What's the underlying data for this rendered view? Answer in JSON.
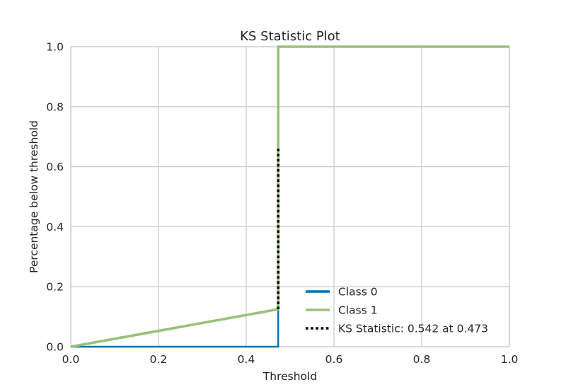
{
  "chart_data": {
    "type": "line",
    "title": "KS Statistic Plot",
    "xlabel": "Threshold",
    "ylabel": "Percentage below threshold",
    "xlim": [
      0.0,
      1.0
    ],
    "ylim": [
      0.0,
      1.0
    ],
    "xticks": [
      "0.0",
      "0.2",
      "0.4",
      "0.6",
      "0.8",
      "1.0"
    ],
    "yticks": [
      "0.0",
      "0.2",
      "0.4",
      "0.6",
      "0.8",
      "1.0"
    ],
    "grid": true,
    "legend_position": "lower-right",
    "series": [
      {
        "name": "Class 0",
        "color": "#0072B2",
        "x": [
          0.0,
          0.473,
          0.473,
          1.0
        ],
        "y": [
          0.0,
          0.0,
          1.0,
          1.0
        ]
      },
      {
        "name": "Class 1",
        "color": "#98C17B",
        "x": [
          0.0,
          0.473,
          0.473,
          1.0
        ],
        "y": [
          0.0,
          0.125,
          1.0,
          1.0
        ]
      }
    ],
    "ks_statistic": {
      "label": "KS Statistic: 0.542 at 0.473",
      "color": "#000000",
      "x": 0.473,
      "y_from": 0.125,
      "y_to": 0.667
    }
  }
}
